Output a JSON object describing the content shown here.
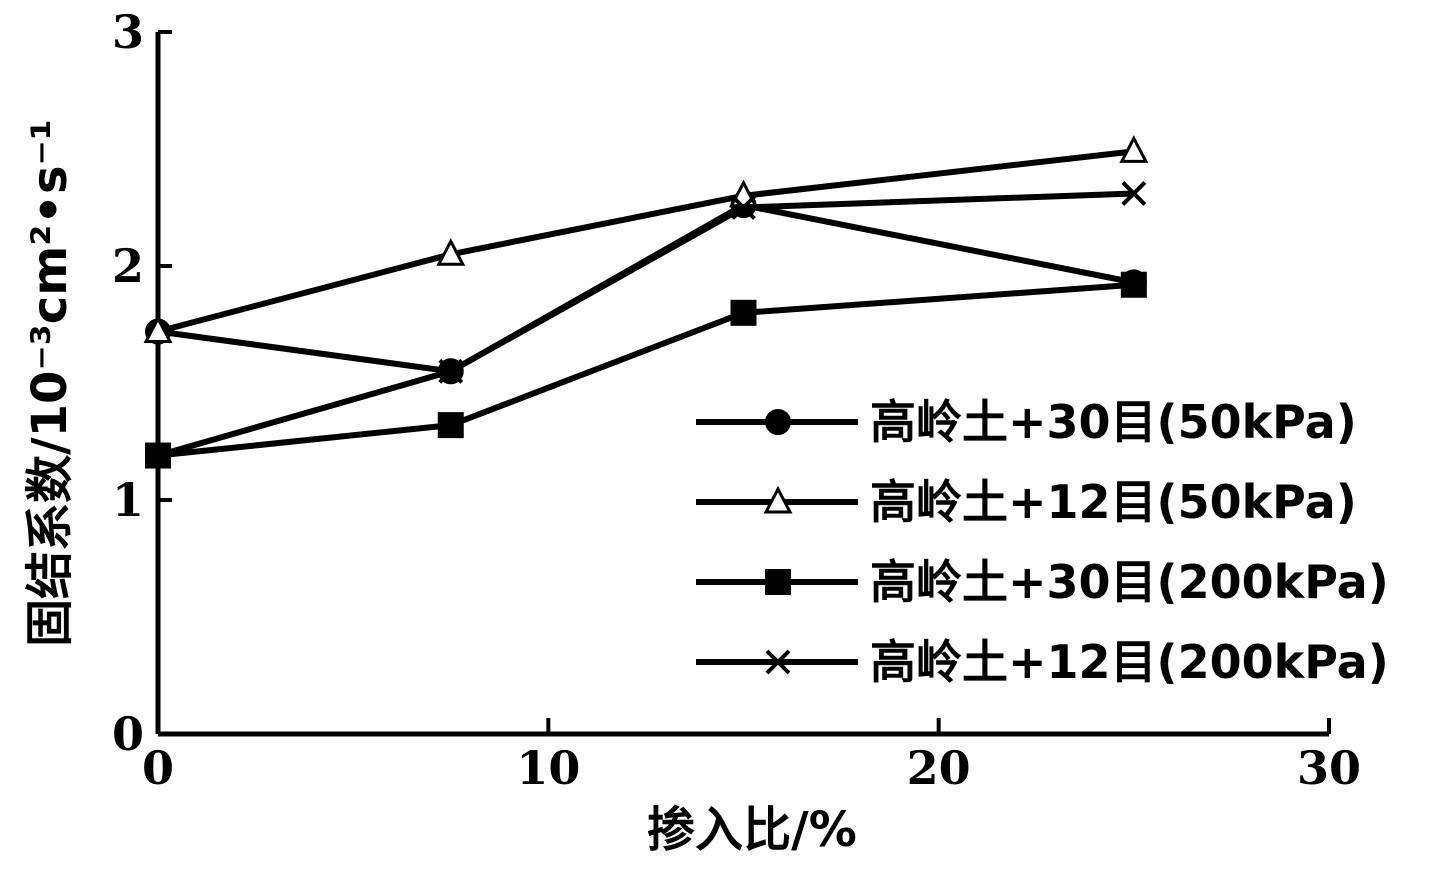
{
  "chart_data": {
    "type": "line",
    "xlabel": "掺入比/%",
    "ylabel": "固结系数/10⁻³cm²•s⁻¹",
    "xlim": [
      0,
      30
    ],
    "ylim": [
      0,
      3
    ],
    "xticks": [
      "0",
      "10",
      "20",
      "30"
    ],
    "yticks": [
      "0",
      "1",
      "2",
      "3"
    ],
    "grid": false,
    "legend_position": "bottom-right",
    "x": [
      0,
      7.5,
      15,
      25
    ],
    "series": [
      {
        "name": "高岭土+30目(50kPa)",
        "marker": "diamond",
        "values": [
          1.72,
          1.55,
          2.26,
          1.93
        ]
      },
      {
        "name": "高岭土+12目(50kPa)",
        "marker": "triangle-open",
        "values": [
          1.72,
          2.05,
          2.3,
          2.49
        ]
      },
      {
        "name": "高岭土+30目(200kPa)",
        "marker": "square",
        "values": [
          1.19,
          1.32,
          1.8,
          1.92
        ]
      },
      {
        "name": "高岭土+12目(200kPa)",
        "marker": "x",
        "values": [
          1.19,
          1.55,
          2.25,
          2.31
        ]
      }
    ]
  }
}
